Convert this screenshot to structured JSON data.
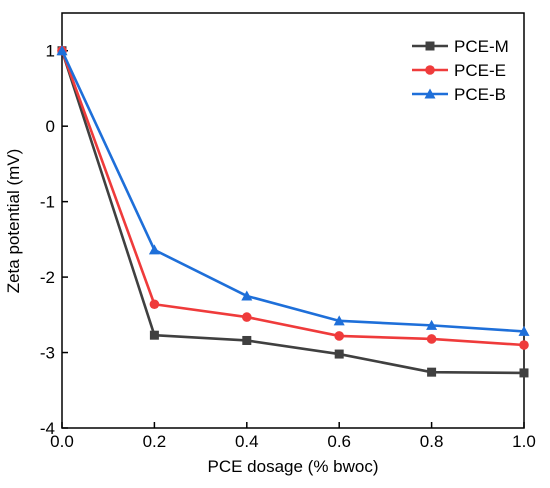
{
  "chart_data": {
    "type": "line",
    "xlabel": "PCE dosage (% bwoc)",
    "ylabel": "Zeta potential (mV)",
    "xlim": [
      0,
      1.0
    ],
    "ylim": [
      -4,
      1.5
    ],
    "x_ticks": [
      0.0,
      0.2,
      0.4,
      0.6,
      0.8,
      1.0
    ],
    "x_tick_labels": [
      "0.0",
      "0.2",
      "0.4",
      "0.6",
      "0.8",
      "1.0"
    ],
    "y_ticks": [
      -4,
      -3,
      -2,
      -1,
      0,
      1
    ],
    "y_tick_labels": [
      "-4",
      "-3",
      "-2",
      "-1",
      "0",
      "1"
    ],
    "grid": false,
    "legend_position": "top-right",
    "x": [
      0.0,
      0.2,
      0.4,
      0.6,
      0.8,
      1.0
    ],
    "series": [
      {
        "name": "PCE-M",
        "color": "#404040",
        "marker": "square",
        "values": [
          1.0,
          -2.77,
          -2.84,
          -3.02,
          -3.26,
          -3.27
        ]
      },
      {
        "name": "PCE-E",
        "color": "#ef3b3b",
        "marker": "circle",
        "values": [
          1.0,
          -2.36,
          -2.53,
          -2.78,
          -2.82,
          -2.9
        ]
      },
      {
        "name": "PCE-B",
        "color": "#1e6fd9",
        "marker": "triangle",
        "values": [
          1.0,
          -1.64,
          -2.25,
          -2.58,
          -2.64,
          -2.72
        ]
      }
    ]
  }
}
